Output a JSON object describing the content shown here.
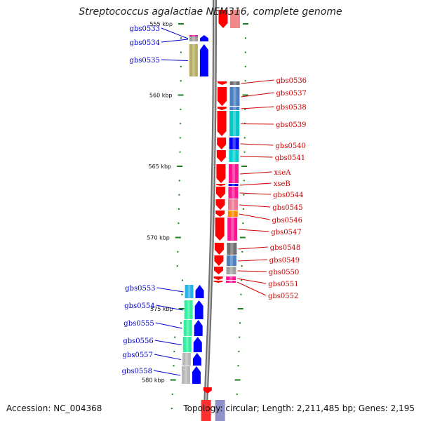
{
  "title": "Streptococcus agalactiae NEM316, complete genome",
  "footer": {
    "accession": "Accession: NC_004368",
    "topology": "Topology: circular",
    "length": "Length: 2,211,485 bp",
    "genes": "Genes: 2,195"
  },
  "colors": {
    "forward_label": "#0000cc",
    "reverse_label": "#cc0000",
    "forward_arrow": "#0000ff",
    "reverse_arrow": "#ff0000",
    "backbone": "#888888",
    "tick": "#1a7f1a"
  },
  "scale": {
    "unit": "kbp",
    "labels": [
      {
        "kbp": 555,
        "text": "555 kbp"
      },
      {
        "kbp": 560,
        "text": "560 kbp"
      },
      {
        "kbp": 565,
        "text": "565 kbp"
      },
      {
        "kbp": 570,
        "text": "570 kbp"
      },
      {
        "kbp": 575,
        "text": "575 kbp"
      },
      {
        "kbp": 580,
        "text": "580 kbp"
      }
    ]
  },
  "forward_genes": [
    {
      "name": "gbs0533",
      "color": "#e0148c"
    },
    {
      "name": "gbs0534",
      "color": "#a0a0a0"
    },
    {
      "name": "gbs0535",
      "color": "#b5ad62"
    },
    {
      "name": "gbs0553",
      "color": "#26b4e8"
    },
    {
      "name": "gbs0554",
      "color": "#33f0a0"
    },
    {
      "name": "gbs0555",
      "color": "#33f0a0"
    },
    {
      "name": "gbs0556",
      "color": "#33f0a0"
    },
    {
      "name": "gbs0557",
      "color": "#b8b8b8"
    },
    {
      "name": "gbs0558",
      "color": "#b8b8b8"
    }
  ],
  "reverse_genes": [
    {
      "name": "gbs0536",
      "color": "#707070"
    },
    {
      "name": "gbs0537",
      "color": "#4a7fc1"
    },
    {
      "name": "gbs0538",
      "color": "#4a7fc1"
    },
    {
      "name": "gbs0539",
      "color": "#00c8c8"
    },
    {
      "name": "gbs0540",
      "color": "#0000ff"
    },
    {
      "name": "gbs0541",
      "color": "#00d0d0"
    },
    {
      "name": "xseA",
      "color": "#ff1493"
    },
    {
      "name": "xseB",
      "color": "#0000ff"
    },
    {
      "name": "gbs0544",
      "color": "#ff1493"
    },
    {
      "name": "gbs0545",
      "color": "#f07890"
    },
    {
      "name": "gbs0546",
      "color": "#ff8c00"
    },
    {
      "name": "gbs0547",
      "color": "#ff1493"
    },
    {
      "name": "gbs0548",
      "color": "#707070"
    },
    {
      "name": "gbs0549",
      "color": "#4a7fc1"
    },
    {
      "name": "gbs0550",
      "color": "#a0a0a0"
    },
    {
      "name": "gbs0551",
      "color": "#ff1493"
    },
    {
      "name": "gbs0552",
      "color": "#ff1493"
    }
  ]
}
